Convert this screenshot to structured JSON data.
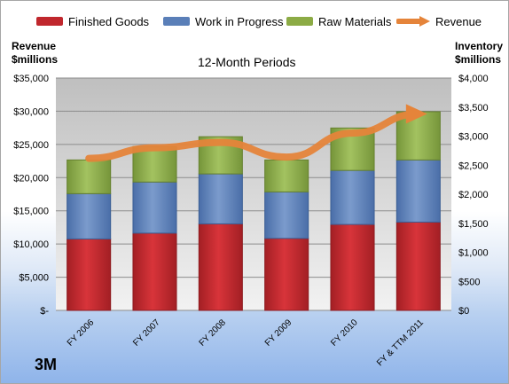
{
  "colors": {
    "finished_goods": "#c0272d",
    "work_in_progress": "#5a7fb8",
    "raw_materials": "#8cab45",
    "revenue": "#e5843a"
  },
  "brand": "3M",
  "chart_data": {
    "type": "bar",
    "stacked": true,
    "title": "12-Month Periods",
    "left_axis_label": "Revenue\n$millions",
    "right_axis_label": "Inventory\n$millions",
    "categories": [
      "FY 2006",
      "FY 2007",
      "FY 2008",
      "FY 2009",
      "FY 2010",
      "FY & TTM 2011"
    ],
    "left_axis": {
      "min": 0,
      "max": 35000,
      "ticks": [
        "$-",
        "$5,000",
        "$10,000",
        "$15,000",
        "$20,000",
        "$25,000",
        "$30,000",
        "$35,000"
      ]
    },
    "right_axis": {
      "min": 0,
      "max": 4000,
      "ticks": [
        "$0",
        "$500",
        "$1,000",
        "$1,500",
        "$2,000",
        "$2,500",
        "$3,000",
        "$3,500",
        "$4,000"
      ]
    },
    "series": [
      {
        "name": "Finished Goods",
        "axis": "right",
        "values": [
          1230,
          1330,
          1490,
          1240,
          1480,
          1520
        ]
      },
      {
        "name": "Work in Progress",
        "axis": "right",
        "values": [
          780,
          880,
          860,
          800,
          930,
          1070
        ]
      },
      {
        "name": "Raw Materials",
        "axis": "right",
        "values": [
          580,
          610,
          640,
          550,
          730,
          830
        ]
      },
      {
        "name": "Revenue",
        "axis": "left",
        "type": "line",
        "values": [
          22900,
          24500,
          25300,
          23100,
          26700,
          29600
        ]
      }
    ],
    "grid": true,
    "legend": "top"
  }
}
